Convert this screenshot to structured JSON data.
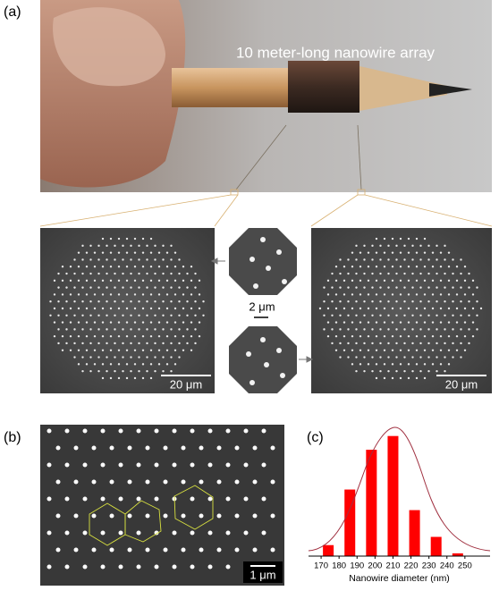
{
  "panel_a": {
    "label": "(a)",
    "caption": "10 meter-long nanowire array",
    "scale_bar_left": "20 μm",
    "scale_bar_inset": "2 μm",
    "scale_bar_right": "20 μm"
  },
  "panel_b": {
    "label": "(b)",
    "scale_bar": "1 μm"
  },
  "chart_data": {
    "type": "bar",
    "panel_label": "(c)",
    "x_label": "Nanowire diameter (nm)",
    "color": "#ff0000",
    "x": [
      174,
      186,
      198,
      210,
      222,
      234,
      246
    ],
    "values": [
      16,
      97,
      155,
      175,
      67,
      28,
      4
    ],
    "xlim": [
      163,
      264
    ],
    "xticks": [
      170,
      180,
      190,
      200,
      210,
      220,
      230,
      240,
      250
    ],
    "ylim": [
      0,
      185
    ]
  }
}
